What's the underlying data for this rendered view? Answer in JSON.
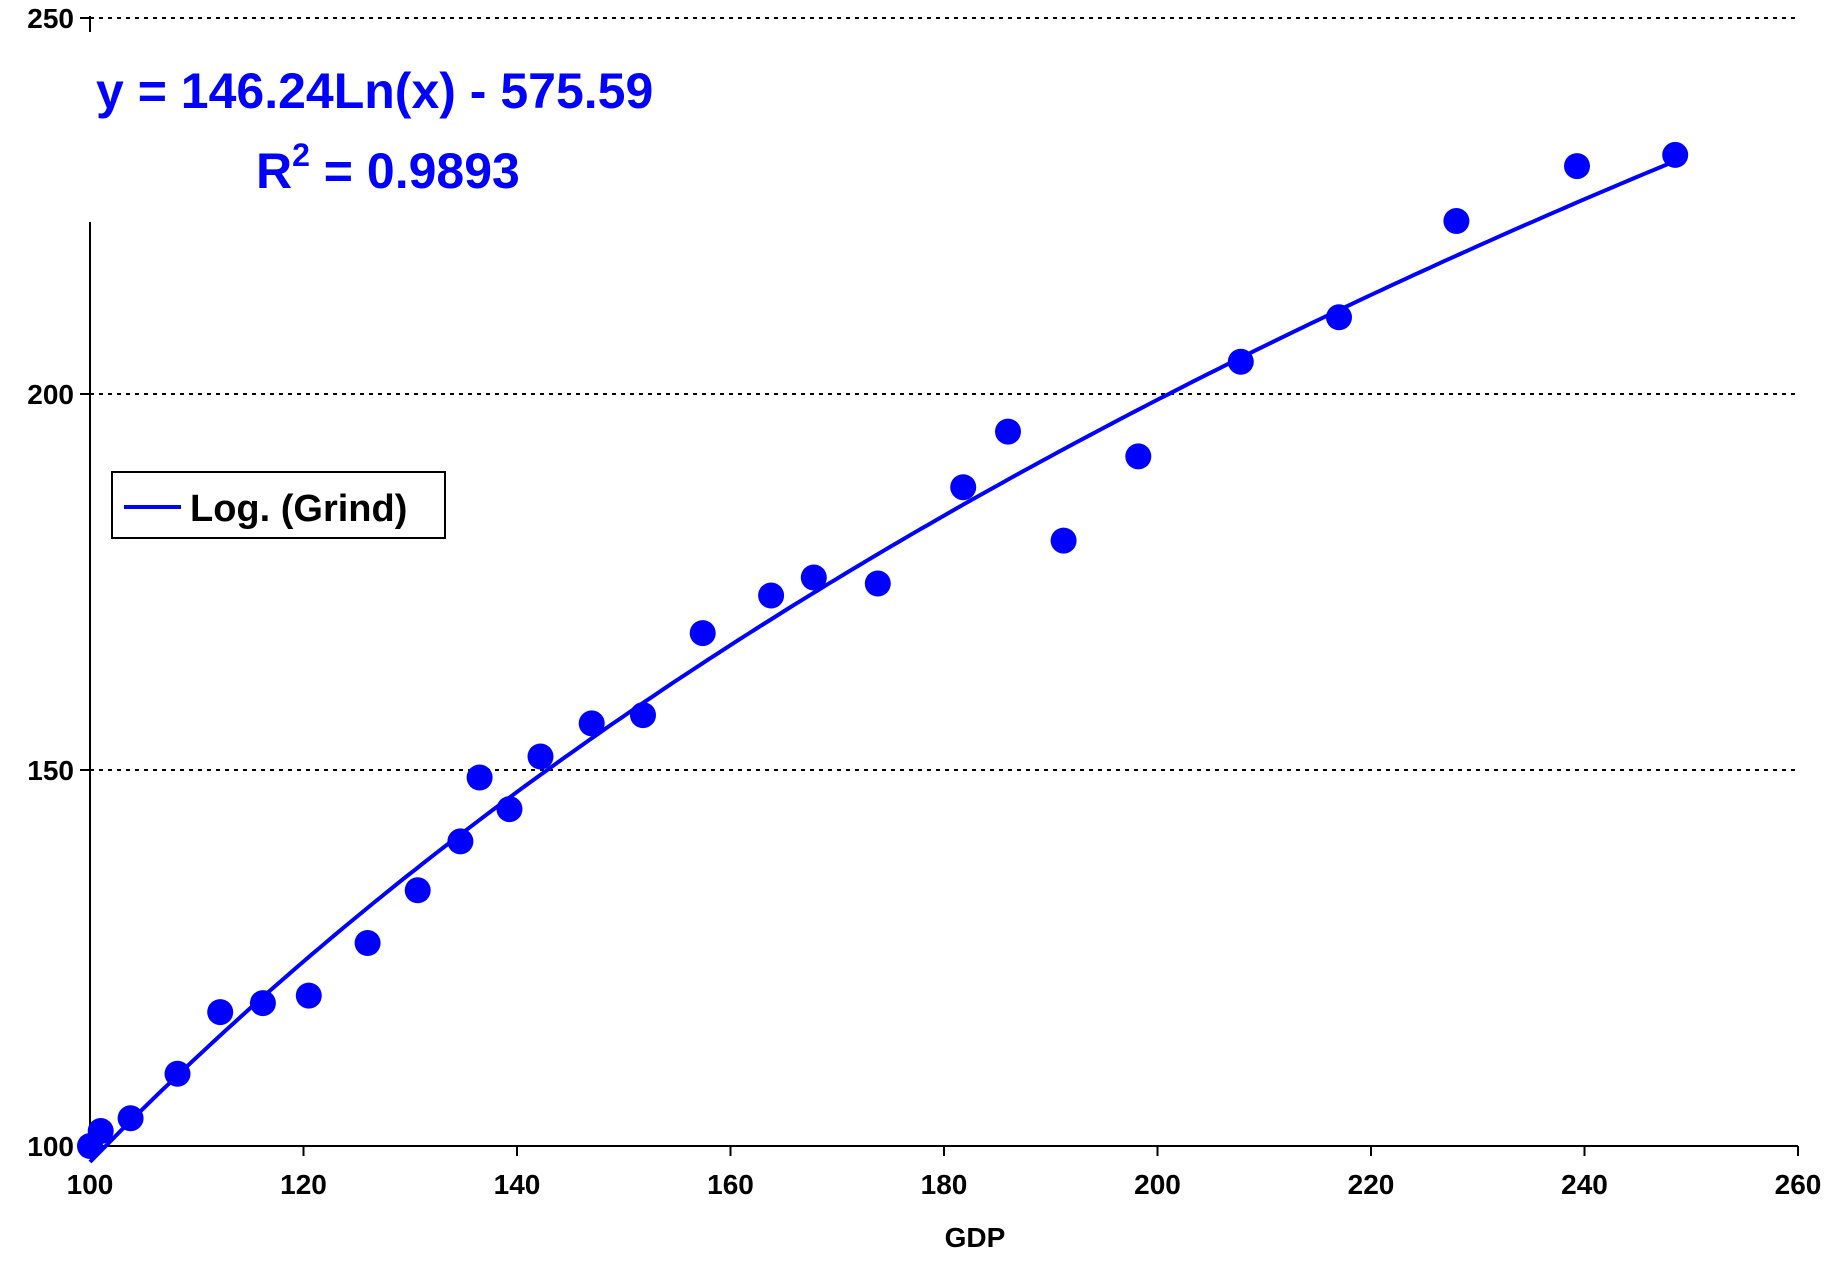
{
  "chart_data": {
    "type": "scatter",
    "xlabel": "GDP",
    "ylabel": "",
    "xlim": [
      100,
      260
    ],
    "ylim": [
      100,
      250
    ],
    "x_ticks": [
      "100",
      "120",
      "140",
      "160",
      "180",
      "200",
      "220",
      "240",
      "260"
    ],
    "y_ticks": [
      "100",
      "150",
      "200",
      "250"
    ],
    "grid": "horizontal dotted",
    "colors": {
      "series": "#0000ff",
      "text": "#000000",
      "trend_label": "#0000ff"
    },
    "series": [
      {
        "points": [
          [
            100,
            100
          ],
          [
            101,
            102
          ],
          [
            103.8,
            103.7
          ],
          [
            108.2,
            109.6
          ],
          [
            112.2,
            117.8
          ],
          [
            116.2,
            119
          ],
          [
            120.5,
            120
          ],
          [
            126,
            127
          ],
          [
            130.7,
            134
          ],
          [
            134.7,
            140.5
          ],
          [
            136.5,
            149
          ],
          [
            139.3,
            144.8
          ],
          [
            142.2,
            151.8
          ],
          [
            147,
            156.2
          ],
          [
            151.8,
            157.3
          ],
          [
            157.4,
            168.2
          ],
          [
            163.8,
            173.2
          ],
          [
            167.8,
            175.6
          ],
          [
            173.8,
            174.8
          ],
          [
            181.8,
            187.6
          ],
          [
            186,
            195
          ],
          [
            191.2,
            180.5
          ],
          [
            198.2,
            191.7
          ],
          [
            207.8,
            204.3
          ],
          [
            217,
            210.2
          ],
          [
            228,
            223
          ],
          [
            239.3,
            230.3
          ],
          [
            248.5,
            231.8
          ]
        ]
      }
    ],
    "trendline": {
      "type": "logarithmic",
      "a": 146.24,
      "b": -575.59,
      "x_range": [
        100,
        248.5
      ],
      "equation_text": "y = 146.24Ln(x) - 575.59",
      "r2_prefix": "R",
      "r2_sup": "2",
      "r2_suffix": " = 0.9893"
    },
    "legend": {
      "label": "Log. (Grind)",
      "position": "left"
    }
  }
}
